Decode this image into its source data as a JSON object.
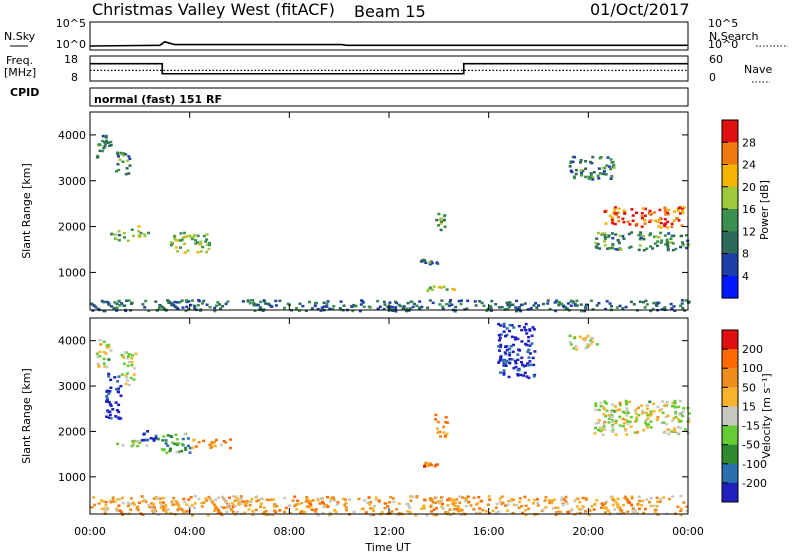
{
  "header": {
    "station": "Christmas Valley West (fitACF)",
    "beam": "Beam 15",
    "date": "01/Oct/2017",
    "cpid_text": "normal (fast) 151 RF"
  },
  "labels": {
    "nsky": "N.Sky",
    "nsearch": "N.Search",
    "freq": "Freq.",
    "mhz": "[MHz]",
    "cpid": "CPID",
    "nave": "Nave",
    "xlabel": "Time UT",
    "ylabel_power": "Slant Range [km]",
    "ylabel_vel": "Slant Range [km]",
    "cb_power": "Power [dB]",
    "cb_vel": "Velocity [m s⁻¹]"
  },
  "small_ticks": {
    "nsky_left": [
      "10^5",
      "10^0"
    ],
    "nsearch_right": [
      "10^5",
      "10^0"
    ],
    "freq_left": [
      "18",
      "8"
    ],
    "nave_right": [
      "60",
      "0"
    ]
  },
  "chart_data": [
    {
      "type": "line",
      "name": "noise-panel",
      "x": [
        0,
        2.8,
        3.0,
        3.4,
        10.1,
        10.3,
        24
      ],
      "values": [
        1.0,
        1.1,
        1.6,
        1.2,
        1.2,
        1.1,
        1.1
      ]
    },
    {
      "type": "line",
      "name": "frequency-panel",
      "x": [
        0,
        2.9,
        10.1,
        10.3,
        15.0,
        24
      ],
      "values": [
        14.8,
        10.6,
        10.6,
        10.6,
        14.8,
        14.8
      ],
      "nave": 24
    },
    {
      "type": "heatmap",
      "title": "Power [dB]",
      "xlabel": "Time UT",
      "ylabel": "Slant Range [km]",
      "x_ticks": [
        "00:00",
        "04:00",
        "08:00",
        "12:00",
        "16:00",
        "20:00",
        "00:00"
      ],
      "y_ticks": [
        1000,
        2000,
        3000,
        4000
      ],
      "xlim": [
        0,
        24
      ],
      "ylim": [
        180,
        4500
      ],
      "colorbar": {
        "ticks": [
          4,
          8,
          12,
          16,
          20,
          24,
          28
        ],
        "range": [
          0,
          32
        ],
        "colors": [
          "#0018ff",
          "#1f3fa8",
          "#2e6a5a",
          "#3b9050",
          "#9fc93c",
          "#f4b400",
          "#f07a10",
          "#e01010"
        ]
      },
      "patches": [
        {
          "t": [
            0.2,
            0.8
          ],
          "r": [
            3500,
            4050
          ],
          "level": 0.4
        },
        {
          "t": [
            0.8,
            1.5
          ],
          "r": [
            1700,
            1950
          ],
          "level": 0.45
        },
        {
          "t": [
            1.0,
            1.6
          ],
          "r": [
            3100,
            3650
          ],
          "level": 0.4
        },
        {
          "t": [
            1.6,
            2.3
          ],
          "r": [
            1800,
            2050
          ],
          "level": 0.5
        },
        {
          "t": [
            3.2,
            4.8
          ],
          "r": [
            1450,
            1900
          ],
          "level": 0.55
        },
        {
          "t": [
            13.2,
            13.9
          ],
          "r": [
            1200,
            1300
          ],
          "level": 0.35
        },
        {
          "t": [
            13.8,
            14.3
          ],
          "r": [
            1900,
            2300
          ],
          "level": 0.5
        },
        {
          "t": [
            13.5,
            14.6
          ],
          "r": [
            620,
            760
          ],
          "level": 0.55
        },
        {
          "t": [
            20.6,
            23.8
          ],
          "r": [
            2000,
            2450
          ],
          "level": 0.85
        },
        {
          "t": [
            19.2,
            21.0
          ],
          "r": [
            3050,
            3550
          ],
          "level": 0.35
        },
        {
          "t": [
            20.2,
            24.0
          ],
          "r": [
            1500,
            1900
          ],
          "level": 0.4
        },
        {
          "t": [
            0.0,
            24.0
          ],
          "r": [
            180,
            420
          ],
          "level": 0.3
        }
      ]
    },
    {
      "type": "heatmap",
      "title": "Velocity [m s⁻¹]",
      "xlabel": "Time UT",
      "ylabel": "Slant Range [km]",
      "x_ticks": [
        "00:00",
        "04:00",
        "08:00",
        "12:00",
        "16:00",
        "20:00",
        "00:00"
      ],
      "y_ticks": [
        1000,
        2000,
        3000,
        4000
      ],
      "xlim": [
        0,
        24
      ],
      "ylim": [
        180,
        4500
      ],
      "colorbar": {
        "ticks": [
          200,
          100,
          50,
          15,
          -15,
          -50,
          -100,
          -200
        ],
        "colors": [
          "#2020c0",
          "#2c6fae",
          "#2e8a2e",
          "#66cc33",
          "#c8c8c0",
          "#f7b32b",
          "#f08c1a",
          "#ff6a00",
          "#e01010"
        ]
      },
      "patches": [
        {
          "t": [
            0.2,
            0.8
          ],
          "r": [
            3400,
            4050
          ],
          "level": 0.5
        },
        {
          "t": [
            0.6,
            1.2
          ],
          "r": [
            2200,
            3300
          ],
          "level": 0.95
        },
        {
          "t": [
            1.2,
            1.8
          ],
          "r": [
            3050,
            3800
          ],
          "level": 0.5
        },
        {
          "t": [
            1.0,
            2.5
          ],
          "r": [
            1700,
            1850
          ],
          "level": 0.5
        },
        {
          "t": [
            2.0,
            2.8
          ],
          "r": [
            1800,
            2050
          ],
          "level": 0.9
        },
        {
          "t": [
            2.8,
            4.0
          ],
          "r": [
            1500,
            2000
          ],
          "level": 0.7
        },
        {
          "t": [
            4.0,
            5.6
          ],
          "r": [
            1650,
            1850
          ],
          "level": 0.3
        },
        {
          "t": [
            13.3,
            13.9
          ],
          "r": [
            1250,
            1350
          ],
          "level": 0.25
        },
        {
          "t": [
            13.8,
            14.3
          ],
          "r": [
            1900,
            2400
          ],
          "level": 0.3
        },
        {
          "t": [
            16.3,
            17.8
          ],
          "r": [
            3200,
            4400
          ],
          "level": 0.95
        },
        {
          "t": [
            19.2,
            20.3
          ],
          "r": [
            3800,
            4150
          ],
          "level": 0.5
        },
        {
          "t": [
            20.2,
            24.0
          ],
          "r": [
            1950,
            2700
          ],
          "level": 0.5
        },
        {
          "t": [
            0.0,
            24.0
          ],
          "r": [
            180,
            600
          ],
          "level": 0.35
        }
      ]
    }
  ]
}
